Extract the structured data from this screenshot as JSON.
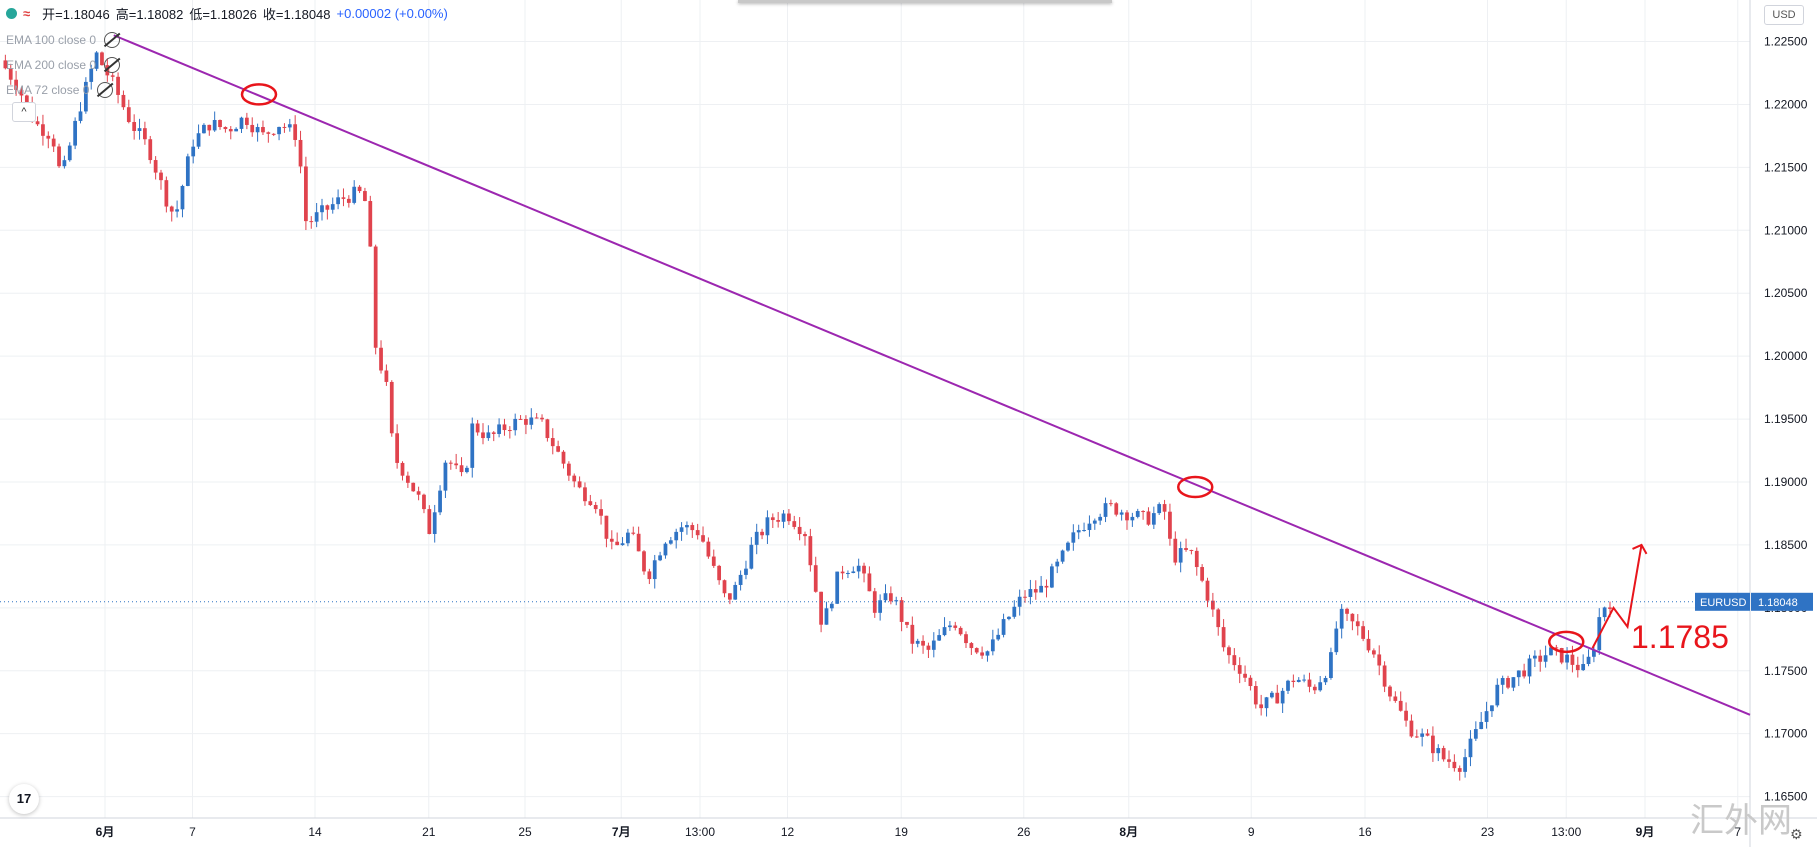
{
  "legend": {
    "open_label": "开=1.18046",
    "high_label": "高=1.18082",
    "low_label": "低=1.18026",
    "close_label": "收=1.18048",
    "change_label": "+0.00002 (+0.00%)",
    "indicators": [
      "EMA 100 close 0",
      "EMA 200 close 0",
      "EMA 72 close 0"
    ],
    "collapse_glyph": "^"
  },
  "currency_button": "USD",
  "tv_logo": "17",
  "watermark": "汇外网",
  "settings_icon": "gear-icon",
  "colors": {
    "up": "#2f73c4",
    "down": "#e0434d",
    "trendline": "#9c27b0",
    "annotation": "#e8151b",
    "price_label_bg": "#2f73c4",
    "grid": "#eef0f3"
  },
  "chart_data": {
    "type": "candlestick",
    "symbol": "EURUSD",
    "last_price": 1.18048,
    "last_price_label": "1.18048",
    "ylim": [
      1.1633,
      1.2283
    ],
    "y_ticks": [
      1.165,
      1.17,
      1.175,
      1.18,
      1.185,
      1.19,
      1.195,
      1.2,
      1.205,
      1.21,
      1.215,
      1.22,
      1.225
    ],
    "y_tick_labels": [
      "1.16500",
      "1.17000",
      "1.17500",
      "1.18000",
      "1.18500",
      "1.19000",
      "1.19500",
      "1.20000",
      "1.20500",
      "1.21000",
      "1.21500",
      "1.22000",
      "1.22500"
    ],
    "x_ticks": [
      {
        "label": "6月",
        "pos": 0.06,
        "bold": true
      },
      {
        "label": "7",
        "pos": 0.11
      },
      {
        "label": "14",
        "pos": 0.18
      },
      {
        "label": "21",
        "pos": 0.245
      },
      {
        "label": "25",
        "pos": 0.3
      },
      {
        "label": "7月",
        "pos": 0.355,
        "bold": true
      },
      {
        "label": "13:00",
        "pos": 0.4
      },
      {
        "label": "12",
        "pos": 0.45
      },
      {
        "label": "19",
        "pos": 0.515
      },
      {
        "label": "26",
        "pos": 0.585
      },
      {
        "label": "8月",
        "pos": 0.645,
        "bold": true
      },
      {
        "label": "9",
        "pos": 0.715
      },
      {
        "label": "16",
        "pos": 0.78
      },
      {
        "label": "23",
        "pos": 0.85
      },
      {
        "label": "13:00",
        "pos": 0.895
      },
      {
        "label": "9月",
        "pos": 0.94,
        "bold": true
      },
      {
        "label": "7",
        "pos": 0.993
      }
    ],
    "path": [
      [
        0.0,
        1.2235
      ],
      [
        0.01,
        1.2215
      ],
      [
        0.02,
        1.2185
      ],
      [
        0.03,
        1.2175
      ],
      [
        0.035,
        1.214
      ],
      [
        0.045,
        1.2195
      ],
      [
        0.055,
        1.224
      ],
      [
        0.065,
        1.2215
      ],
      [
        0.075,
        1.2185
      ],
      [
        0.085,
        1.2165
      ],
      [
        0.095,
        1.2125
      ],
      [
        0.1,
        1.211
      ],
      [
        0.11,
        1.217
      ],
      [
        0.12,
        1.2185
      ],
      [
        0.13,
        1.218
      ],
      [
        0.14,
        1.219
      ],
      [
        0.15,
        1.2175
      ],
      [
        0.16,
        1.2185
      ],
      [
        0.17,
        1.2175
      ],
      [
        0.175,
        1.2105
      ],
      [
        0.185,
        1.2115
      ],
      [
        0.195,
        1.2125
      ],
      [
        0.205,
        1.213
      ],
      [
        0.21,
        1.212
      ],
      [
        0.215,
        1.2
      ],
      [
        0.22,
        1.1985
      ],
      [
        0.225,
        1.192
      ],
      [
        0.23,
        1.191
      ],
      [
        0.24,
        1.1885
      ],
      [
        0.245,
        1.186
      ],
      [
        0.255,
        1.192
      ],
      [
        0.265,
        1.19
      ],
      [
        0.27,
        1.1945
      ],
      [
        0.28,
        1.1935
      ],
      [
        0.29,
        1.1945
      ],
      [
        0.3,
        1.195
      ],
      [
        0.31,
        1.1945
      ],
      [
        0.32,
        1.192
      ],
      [
        0.33,
        1.1895
      ],
      [
        0.34,
        1.1885
      ],
      [
        0.35,
        1.1845
      ],
      [
        0.36,
        1.186
      ],
      [
        0.37,
        1.1825
      ],
      [
        0.38,
        1.1855
      ],
      [
        0.39,
        1.1865
      ],
      [
        0.4,
        1.186
      ],
      [
        0.405,
        1.184
      ],
      [
        0.415,
        1.1805
      ],
      [
        0.42,
        1.1815
      ],
      [
        0.43,
        1.185
      ],
      [
        0.44,
        1.187
      ],
      [
        0.45,
        1.1875
      ],
      [
        0.46,
        1.186
      ],
      [
        0.47,
        1.1785
      ],
      [
        0.48,
        1.183
      ],
      [
        0.49,
        1.1835
      ],
      [
        0.5,
        1.18
      ],
      [
        0.51,
        1.181
      ],
      [
        0.52,
        1.1775
      ],
      [
        0.53,
        1.1765
      ],
      [
        0.545,
        1.179
      ],
      [
        0.555,
        1.177
      ],
      [
        0.565,
        1.1765
      ],
      [
        0.575,
        1.179
      ],
      [
        0.585,
        1.181
      ],
      [
        0.595,
        1.1815
      ],
      [
        0.605,
        1.1835
      ],
      [
        0.615,
        1.186
      ],
      [
        0.625,
        1.1875
      ],
      [
        0.635,
        1.188
      ],
      [
        0.645,
        1.1875
      ],
      [
        0.655,
        1.187
      ],
      [
        0.665,
        1.188
      ],
      [
        0.67,
        1.184
      ],
      [
        0.68,
        1.1845
      ],
      [
        0.69,
        1.181
      ],
      [
        0.7,
        1.1765
      ],
      [
        0.71,
        1.175
      ],
      [
        0.72,
        1.172
      ],
      [
        0.73,
        1.173
      ],
      [
        0.74,
        1.1745
      ],
      [
        0.75,
        1.1735
      ],
      [
        0.76,
        1.1755
      ],
      [
        0.765,
        1.1795
      ],
      [
        0.775,
        1.1785
      ],
      [
        0.785,
        1.1765
      ],
      [
        0.795,
        1.173
      ],
      [
        0.805,
        1.1705
      ],
      [
        0.815,
        1.1695
      ],
      [
        0.825,
        1.168
      ],
      [
        0.835,
        1.1675
      ],
      [
        0.845,
        1.1705
      ],
      [
        0.855,
        1.1735
      ],
      [
        0.865,
        1.1745
      ],
      [
        0.875,
        1.1755
      ],
      [
        0.885,
        1.1765
      ],
      [
        0.895,
        1.176
      ],
      [
        0.905,
        1.175
      ],
      [
        0.91,
        1.1765
      ],
      [
        0.915,
        1.18
      ],
      [
        0.92,
        1.1805
      ]
    ],
    "trendline": {
      "from": [
        0.065,
        1.2255
      ],
      "to": [
        1.0,
        1.1715
      ]
    },
    "circles": [
      [
        0.148,
        1.2208
      ],
      [
        0.683,
        1.1896
      ],
      [
        0.895,
        1.1773
      ]
    ],
    "arrow": {
      "points": [
        [
          0.91,
          1.1768
        ],
        [
          0.922,
          1.18
        ],
        [
          0.93,
          1.1785
        ],
        [
          0.938,
          1.185
        ]
      ]
    },
    "annotation_label": "1.1785",
    "annotation_pos": [
      0.932,
      1.1768
    ]
  }
}
